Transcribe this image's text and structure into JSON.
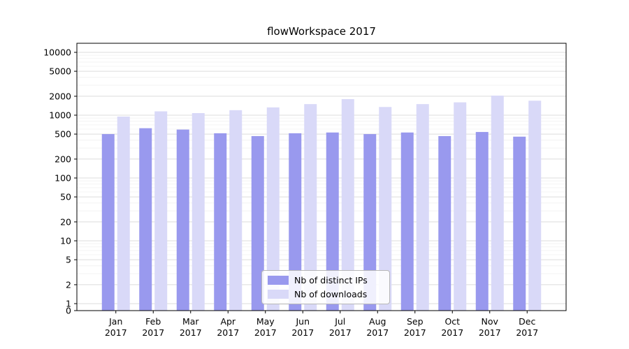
{
  "chart_data": {
    "type": "bar",
    "title": "flowWorkspace 2017",
    "months": [
      "Jan",
      "Feb",
      "Mar",
      "Apr",
      "May",
      "Jun",
      "Jul",
      "Aug",
      "Sep",
      "Oct",
      "Nov",
      "Dec"
    ],
    "year_label": "2017",
    "categories": [
      "Jan 2017",
      "Feb 2017",
      "Mar 2017",
      "Apr 2017",
      "May 2017",
      "Jun 2017",
      "Jul 2017",
      "Aug 2017",
      "Sep 2017",
      "Oct 2017",
      "Nov 2017",
      "Dec 2017"
    ],
    "series": [
      {
        "name": "Nb of distinct IPs",
        "color": "#9999ee",
        "values": [
          500,
          620,
          590,
          515,
          465,
          515,
          530,
          500,
          530,
          465,
          540,
          455
        ]
      },
      {
        "name": "Nb of downloads",
        "color": "#d9d9f8",
        "values": [
          950,
          1150,
          1080,
          1200,
          1330,
          1500,
          1800,
          1350,
          1500,
          1600,
          2050,
          1700
        ]
      }
    ],
    "y_scale": "symlog",
    "y_ticks": [
      0,
      1,
      2,
      5,
      10,
      20,
      50,
      100,
      200,
      500,
      1000,
      2000,
      5000,
      10000
    ],
    "ylim": [
      0,
      13000
    ],
    "grid": "horizontal major and minor gridlines",
    "legend_position": "lower center"
  },
  "style_colors": {
    "major_grid": "#dcdcdc",
    "minor_grid": "#f0f0f0",
    "axis": "#000000",
    "background": "#ffffff"
  }
}
